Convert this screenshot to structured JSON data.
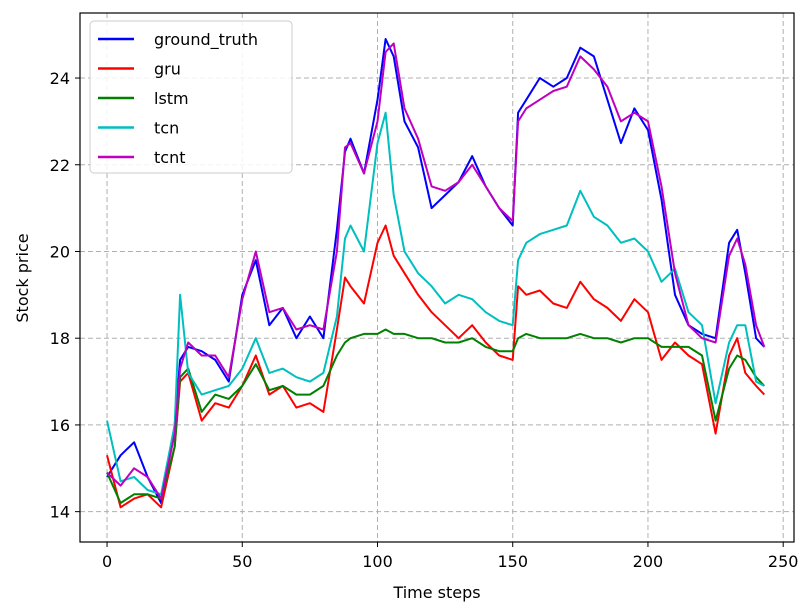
{
  "chart_data": {
    "type": "line",
    "title": "",
    "xlabel": "Time steps",
    "ylabel": "Stock price",
    "xlim": [
      -10,
      254
    ],
    "ylim": [
      13.3,
      25.5
    ],
    "xticks": [
      0,
      50,
      100,
      150,
      200,
      250
    ],
    "yticks": [
      14,
      16,
      18,
      20,
      22,
      24
    ],
    "grid": true,
    "grid_style": "dashed",
    "legend_position": "top-left",
    "series": [
      {
        "name": "ground_truth",
        "color": "#0000ff",
        "x": [
          0,
          5,
          10,
          15,
          20,
          25,
          27,
          30,
          35,
          40,
          45,
          50,
          55,
          60,
          65,
          70,
          75,
          80,
          85,
          88,
          90,
          95,
          100,
          103,
          106,
          110,
          115,
          120,
          125,
          130,
          135,
          140,
          145,
          150,
          152,
          155,
          160,
          165,
          170,
          175,
          180,
          185,
          190,
          195,
          200,
          205,
          210,
          215,
          220,
          225,
          230,
          233,
          236,
          240,
          243
        ],
        "y": [
          14.8,
          15.3,
          15.6,
          14.8,
          14.2,
          16.0,
          17.5,
          17.8,
          17.7,
          17.5,
          17.0,
          19.0,
          19.8,
          18.3,
          18.7,
          18.0,
          18.5,
          18.0,
          20.5,
          22.3,
          22.6,
          21.8,
          23.5,
          24.9,
          24.5,
          23.0,
          22.4,
          21.0,
          21.3,
          21.6,
          22.2,
          21.5,
          21.0,
          20.6,
          23.2,
          23.5,
          24.0,
          23.8,
          24.0,
          24.7,
          24.5,
          23.5,
          22.5,
          23.3,
          22.8,
          21.2,
          19.0,
          18.3,
          18.1,
          18.0,
          20.2,
          20.5,
          19.5,
          18.0,
          17.8
        ]
      },
      {
        "name": "gru",
        "color": "#ff0000",
        "x": [
          0,
          5,
          10,
          15,
          20,
          25,
          27,
          30,
          35,
          40,
          45,
          50,
          55,
          60,
          65,
          70,
          75,
          80,
          85,
          88,
          90,
          95,
          100,
          103,
          106,
          110,
          115,
          120,
          125,
          130,
          135,
          140,
          145,
          150,
          152,
          155,
          160,
          165,
          170,
          175,
          180,
          185,
          190,
          195,
          200,
          205,
          210,
          215,
          220,
          225,
          230,
          233,
          236,
          240,
          243
        ],
        "y": [
          15.3,
          14.1,
          14.3,
          14.4,
          14.1,
          15.5,
          17.0,
          17.2,
          16.1,
          16.5,
          16.4,
          16.9,
          17.6,
          16.7,
          16.9,
          16.4,
          16.5,
          16.3,
          18.2,
          19.4,
          19.2,
          18.8,
          20.2,
          20.6,
          19.9,
          19.5,
          19.0,
          18.6,
          18.3,
          18.0,
          18.3,
          17.9,
          17.6,
          17.5,
          19.2,
          19.0,
          19.1,
          18.8,
          18.7,
          19.3,
          18.9,
          18.7,
          18.4,
          18.9,
          18.6,
          17.5,
          17.9,
          17.6,
          17.4,
          15.8,
          17.6,
          18.0,
          17.2,
          16.9,
          16.7
        ]
      },
      {
        "name": "lstm",
        "color": "#008000",
        "x": [
          0,
          5,
          10,
          15,
          20,
          25,
          27,
          30,
          35,
          40,
          45,
          50,
          55,
          60,
          65,
          70,
          75,
          80,
          85,
          88,
          90,
          95,
          100,
          103,
          106,
          110,
          115,
          120,
          125,
          130,
          135,
          140,
          145,
          150,
          152,
          155,
          160,
          165,
          170,
          175,
          180,
          185,
          190,
          195,
          200,
          205,
          210,
          215,
          220,
          225,
          230,
          233,
          236,
          240,
          243
        ],
        "y": [
          14.9,
          14.2,
          14.4,
          14.4,
          14.3,
          15.5,
          17.1,
          17.3,
          16.3,
          16.7,
          16.6,
          16.9,
          17.4,
          16.8,
          16.9,
          16.7,
          16.7,
          16.9,
          17.6,
          17.9,
          18.0,
          18.1,
          18.1,
          18.2,
          18.1,
          18.1,
          18.0,
          18.0,
          17.9,
          17.9,
          18.0,
          17.8,
          17.7,
          17.7,
          18.0,
          18.1,
          18.0,
          18.0,
          18.0,
          18.1,
          18.0,
          18.0,
          17.9,
          18.0,
          18.0,
          17.8,
          17.8,
          17.8,
          17.6,
          16.1,
          17.3,
          17.6,
          17.5,
          17.1,
          16.9
        ]
      },
      {
        "name": "tcn",
        "color": "#00bfbf",
        "x": [
          0,
          5,
          10,
          15,
          20,
          25,
          27,
          30,
          35,
          40,
          45,
          50,
          55,
          60,
          65,
          70,
          75,
          80,
          85,
          88,
          90,
          95,
          100,
          103,
          106,
          110,
          115,
          120,
          125,
          130,
          135,
          140,
          145,
          150,
          152,
          155,
          160,
          165,
          170,
          175,
          180,
          185,
          190,
          195,
          200,
          205,
          210,
          215,
          220,
          225,
          230,
          233,
          236,
          240,
          243
        ],
        "y": [
          16.1,
          14.7,
          14.8,
          14.5,
          14.4,
          16.0,
          19.0,
          17.2,
          16.7,
          16.8,
          16.9,
          17.3,
          18.0,
          17.2,
          17.3,
          17.1,
          17.0,
          17.2,
          18.5,
          20.3,
          20.6,
          20.0,
          22.5,
          23.2,
          21.3,
          20.0,
          19.5,
          19.2,
          18.8,
          19.0,
          18.9,
          18.6,
          18.4,
          18.3,
          19.8,
          20.2,
          20.4,
          20.5,
          20.6,
          21.4,
          20.8,
          20.6,
          20.2,
          20.3,
          20.0,
          19.3,
          19.6,
          18.6,
          18.3,
          16.5,
          17.9,
          18.3,
          18.3,
          17.0,
          16.9
        ]
      },
      {
        "name": "tcnt",
        "color": "#bf00bf",
        "x": [
          0,
          5,
          10,
          15,
          20,
          25,
          27,
          30,
          35,
          40,
          45,
          50,
          55,
          60,
          65,
          70,
          75,
          80,
          85,
          88,
          90,
          95,
          100,
          103,
          106,
          110,
          115,
          120,
          125,
          130,
          135,
          140,
          145,
          150,
          152,
          155,
          160,
          165,
          170,
          175,
          180,
          185,
          190,
          195,
          200,
          205,
          210,
          215,
          220,
          225,
          230,
          233,
          236,
          240,
          243
        ],
        "y": [
          14.9,
          14.6,
          15.0,
          14.8,
          14.3,
          15.8,
          17.3,
          17.9,
          17.6,
          17.6,
          17.1,
          18.9,
          20.0,
          18.6,
          18.7,
          18.2,
          18.3,
          18.2,
          20.0,
          22.4,
          22.5,
          21.8,
          23.0,
          24.6,
          24.8,
          23.3,
          22.6,
          21.5,
          21.4,
          21.6,
          22.0,
          21.5,
          21.0,
          20.7,
          23.0,
          23.3,
          23.5,
          23.7,
          23.8,
          24.5,
          24.2,
          23.8,
          23.0,
          23.2,
          23.0,
          21.5,
          19.5,
          18.3,
          18.0,
          17.9,
          19.9,
          20.3,
          19.7,
          18.3,
          17.8
        ]
      }
    ]
  }
}
